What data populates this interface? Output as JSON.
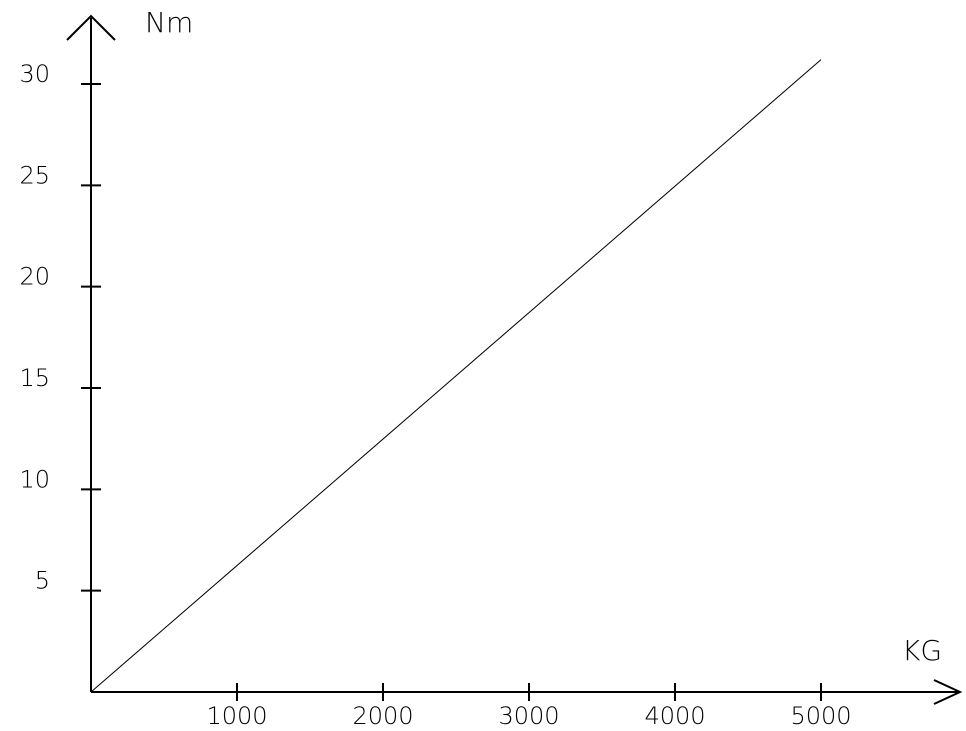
{
  "chart_data": {
    "type": "line",
    "title": "",
    "xlabel": "KG",
    "ylabel": "Nm",
    "xlim": [
      0,
      5800
    ],
    "ylim": [
      0,
      33
    ],
    "xticks": [
      1000,
      2000,
      3000,
      4000,
      5000
    ],
    "yticks": [
      5,
      10,
      15,
      20,
      25,
      30
    ],
    "xtick_labels": [
      "1000",
      "2000",
      "3000",
      "4000",
      "5000"
    ],
    "ytick_labels": [
      "5",
      "10",
      "15",
      "20",
      "25",
      "30"
    ],
    "grid": false,
    "legend": "none",
    "series": [
      {
        "x": [
          0,
          5000
        ],
        "y": [
          0,
          31.2
        ]
      }
    ]
  }
}
